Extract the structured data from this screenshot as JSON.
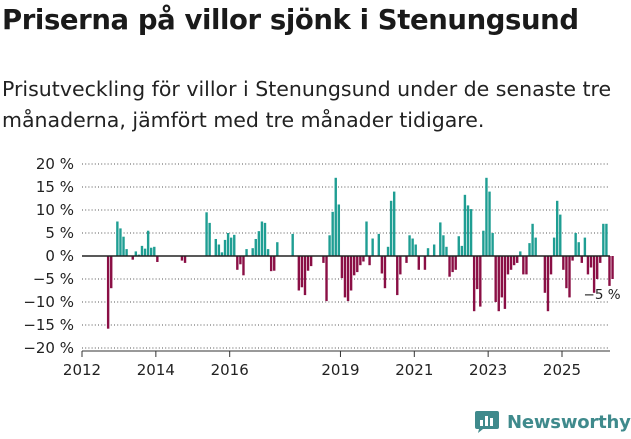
{
  "title": "Priserna på villor sjönk i Stenungsund",
  "subtitle": "Prisutveckling för villor i Stenungsund under de senaste tre månaderna, jämfört med tre månader tidigare.",
  "brand": {
    "name": "Newsworthy",
    "logo_icon": "newsworthy-logo-icon"
  },
  "colors": {
    "positive": "#1f9e93",
    "negative": "#8a0f45",
    "axis": "#333333",
    "grid": "#555555"
  },
  "chart_data": {
    "type": "bar",
    "title": "Priserna på villor sjönk i Stenungsund",
    "xlabel": "",
    "ylabel": "",
    "x_start": 2012.0,
    "x_step": 0.0833,
    "xlim": [
      2012.0,
      2026.3
    ],
    "ylim": [
      -20,
      20
    ],
    "yticks": [
      20,
      15,
      10,
      5,
      0,
      -5,
      -10,
      -15,
      -20
    ],
    "ytick_labels": [
      "20 %",
      "15 %",
      "10 %",
      "5 %",
      "0 %",
      "−5 %",
      "−10 %",
      "−15 %",
      "−20 %"
    ],
    "xticks": [
      2012,
      2014,
      2016,
      2019,
      2021,
      2023,
      2025
    ],
    "xtick_labels": [
      "2012",
      "2014",
      "2016",
      "2019",
      "2021",
      "2023",
      "2025"
    ],
    "values": [
      null,
      null,
      null,
      null,
      null,
      null,
      null,
      null,
      -15.8,
      -7.0,
      null,
      7.5,
      6.0,
      4.2,
      1.5,
      null,
      -0.8,
      1.0,
      0.3,
      2.2,
      1.6,
      5.5,
      1.8,
      2.0,
      -1.3,
      null,
      null,
      null,
      null,
      null,
      null,
      null,
      -1.0,
      -1.5,
      null,
      null,
      null,
      null,
      null,
      null,
      9.5,
      7.2,
      null,
      3.7,
      2.5,
      0.8,
      3.5,
      5.0,
      4.0,
      4.6,
      -3.0,
      -1.8,
      -4.2,
      1.5,
      null,
      1.7,
      3.7,
      5.4,
      7.5,
      7.2,
      1.5,
      -3.3,
      -3.2,
      3.0,
      null,
      null,
      null,
      null,
      4.8,
      null,
      -7.5,
      -6.8,
      -8.5,
      -3.2,
      -2.2,
      null,
      null,
      null,
      -1.5,
      -9.8,
      4.5,
      9.6,
      17.0,
      11.2,
      -4.8,
      -9.0,
      -9.8,
      -7.5,
      -4.2,
      -3.5,
      -2.0,
      -1.2,
      7.5,
      -2.0,
      3.8,
      null,
      4.8,
      -3.8,
      -7.0,
      2.0,
      12.0,
      14.0,
      -8.5,
      -4.0,
      null,
      -1.5,
      4.5,
      3.8,
      2.5,
      -3.0,
      null,
      -3.0,
      1.7,
      null,
      2.5,
      null,
      7.3,
      4.5,
      2.0,
      -4.5,
      -3.5,
      -3.0,
      4.3,
      2.2,
      13.3,
      11.0,
      10.2,
      -12.0,
      -7.2,
      -11.0,
      5.5,
      17.0,
      14.0,
      5.0,
      -10.0,
      -12.0,
      -9.0,
      -11.5,
      -4.0,
      -3.0,
      -2.0,
      -1.5,
      1.0,
      -4.0,
      -4.0,
      2.8,
      7.0,
      4.0,
      null,
      null,
      -8.0,
      -12.0,
      -4.0,
      4.0,
      12.0,
      9.0,
      -3.0,
      -7.0,
      -9.0,
      -1.0,
      5.0,
      3.0,
      -1.5,
      4.0,
      -4.0,
      -2.5,
      -8.0,
      -5.0,
      -1.5,
      7.0,
      7.0,
      -6.5,
      -5.0
    ],
    "annotations": [
      {
        "text": "−5 %",
        "target": "last_bar"
      }
    ]
  }
}
